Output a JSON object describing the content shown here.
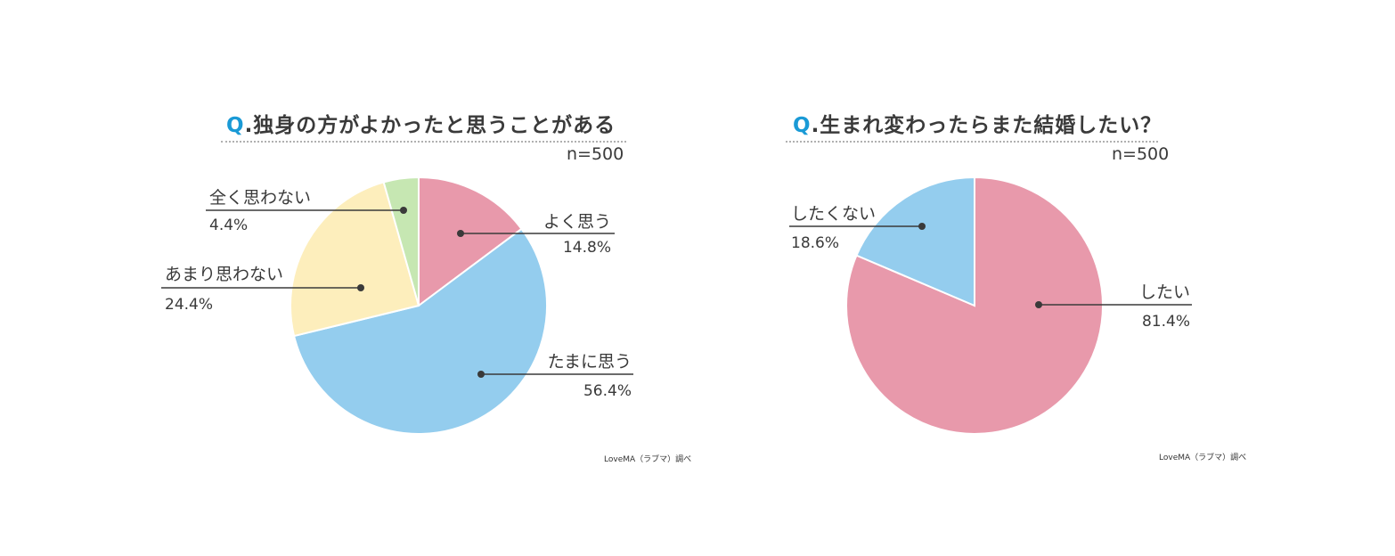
{
  "chart_data": [
    {
      "type": "pie",
      "title_prefix": "Q",
      "title_text": ".独身の方がよかったと思うことがある",
      "sample_size": "n=500",
      "source": "LoveMA（ラブマ）調べ",
      "slices": [
        {
          "label": "よく思う",
          "value": 14.8,
          "value_label": "14.8%",
          "color": "#e899ab"
        },
        {
          "label": "たまに思う",
          "value": 56.4,
          "value_label": "56.4%",
          "color": "#94cdee"
        },
        {
          "label": "あまり思わない",
          "value": 24.4,
          "value_label": "24.4%",
          "color": "#fdeebc"
        },
        {
          "label": "全く思わない",
          "value": 4.4,
          "value_label": "4.4%",
          "color": "#c6e7b2"
        }
      ]
    },
    {
      "type": "pie",
      "title_prefix": "Q",
      "title_text": ".生まれ変わったらまた結婚したい？",
      "sample_size": "n=500",
      "source": "LoveMA（ラブマ）調べ",
      "slices": [
        {
          "label": "したい",
          "value": 81.4,
          "value_label": "81.4%",
          "color": "#e899ab"
        },
        {
          "label": "したくない",
          "value": 18.6,
          "value_label": "18.6%",
          "color": "#94cdee"
        }
      ]
    }
  ]
}
